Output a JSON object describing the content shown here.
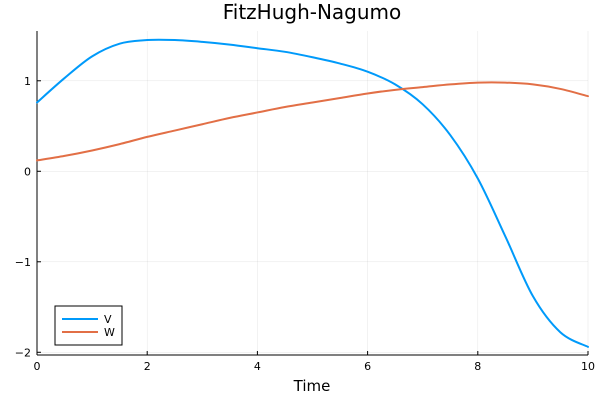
{
  "chart_data": {
    "type": "line",
    "title": "FitzHugh-Nagumo",
    "xlabel": "Time",
    "ylabel": "",
    "xlim": [
      0,
      10
    ],
    "ylim": [
      -2.03,
      1.55
    ],
    "xticks": [
      0,
      2,
      4,
      6,
      8,
      10
    ],
    "xtick_labels": [
      "0",
      "2",
      "4",
      "6",
      "8",
      "10"
    ],
    "yticks": [
      -2,
      -1,
      0,
      1
    ],
    "ytick_labels": [
      "−2",
      "−1",
      "0",
      "1"
    ],
    "grid": true,
    "legend_position": "bottom-left",
    "x": [
      0,
      0.5,
      1,
      1.5,
      2,
      2.5,
      3,
      3.5,
      4,
      4.5,
      5,
      5.5,
      6,
      6.5,
      7,
      7.5,
      8,
      8.5,
      9,
      9.5,
      10
    ],
    "series": [
      {
        "name": "V",
        "color": "#009AFA",
        "values": [
          0.76,
          1.03,
          1.27,
          1.41,
          1.45,
          1.45,
          1.43,
          1.4,
          1.36,
          1.32,
          1.26,
          1.19,
          1.1,
          0.96,
          0.74,
          0.4,
          -0.08,
          -0.72,
          -1.38,
          -1.78,
          -1.94
        ]
      },
      {
        "name": "W",
        "color": "#E26F46",
        "values": [
          0.12,
          0.17,
          0.23,
          0.3,
          0.38,
          0.45,
          0.52,
          0.59,
          0.65,
          0.71,
          0.76,
          0.81,
          0.86,
          0.9,
          0.93,
          0.96,
          0.98,
          0.98,
          0.96,
          0.91,
          0.83
        ]
      }
    ]
  }
}
